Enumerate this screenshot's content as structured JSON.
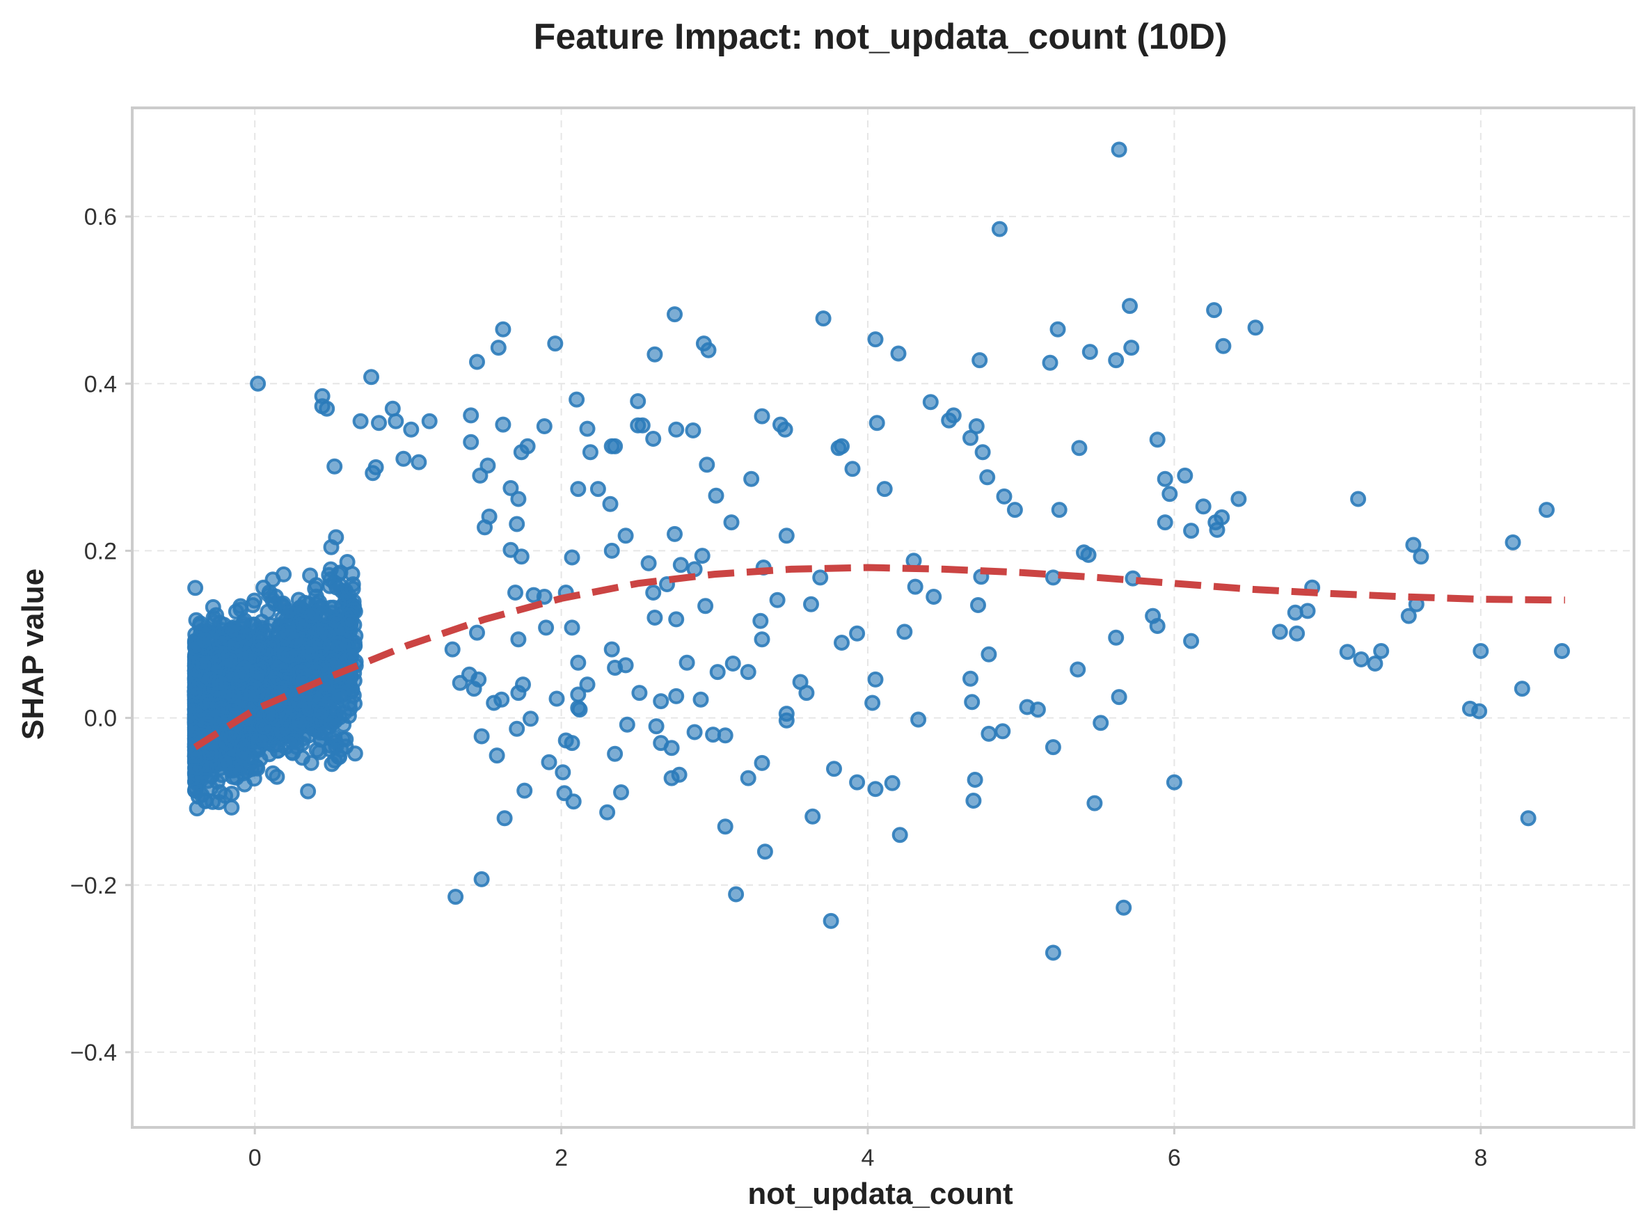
{
  "chart_data": {
    "type": "scatter",
    "title": "Feature Impact: not_updata_count (10D)",
    "xlabel": "not_updata_count",
    "ylabel": "SHAP value",
    "xlim": [
      -0.8,
      9.0
    ],
    "ylim": [
      -0.49,
      0.73
    ],
    "xticks": [
      0,
      2,
      4,
      6,
      8
    ],
    "xtick_labels": [
      "0",
      "2",
      "4",
      "6",
      "8"
    ],
    "yticks": [
      -0.4,
      -0.2,
      0.0,
      0.2,
      0.4,
      0.6
    ],
    "ytick_labels": [
      "−0.4",
      "−0.2",
      "0.0",
      "0.2",
      "0.4",
      "0.6"
    ],
    "grid": true,
    "colors": {
      "points": "#2b7bba",
      "trend": "#cb4443",
      "frame": "#cccccc"
    },
    "series": [
      {
        "type": "scatter",
        "points": [
          [
            5.64,
            0.68
          ],
          [
            4.86,
            0.585
          ],
          [
            2.74,
            0.483
          ],
          [
            3.71,
            0.478
          ],
          [
            5.71,
            0.493
          ],
          [
            6.26,
            0.488
          ],
          [
            1.62,
            0.465
          ],
          [
            5.24,
            0.465
          ],
          [
            6.53,
            0.467
          ],
          [
            4.05,
            0.453
          ],
          [
            1.96,
            0.448
          ],
          [
            2.93,
            0.448
          ],
          [
            1.59,
            0.443
          ],
          [
            2.96,
            0.44
          ],
          [
            5.45,
            0.438
          ],
          [
            5.72,
            0.443
          ],
          [
            6.32,
            0.445
          ],
          [
            4.2,
            0.436
          ],
          [
            2.61,
            0.435
          ],
          [
            1.45,
            0.426
          ],
          [
            4.73,
            0.428
          ],
          [
            5.19,
            0.425
          ],
          [
            5.62,
            0.428
          ],
          [
            0.76,
            0.408
          ],
          [
            0.02,
            0.4
          ],
          [
            0.44,
            0.385
          ],
          [
            0.44,
            0.373
          ],
          [
            2.1,
            0.381
          ],
          [
            2.5,
            0.379
          ],
          [
            4.41,
            0.378
          ],
          [
            1.41,
            0.362
          ],
          [
            3.31,
            0.361
          ],
          [
            4.56,
            0.362
          ],
          [
            4.53,
            0.356
          ],
          [
            0.69,
            0.355
          ],
          [
            0.81,
            0.353
          ],
          [
            0.92,
            0.355
          ],
          [
            1.14,
            0.355
          ],
          [
            1.02,
            0.345
          ],
          [
            1.62,
            0.351
          ],
          [
            1.89,
            0.349
          ],
          [
            2.17,
            0.346
          ],
          [
            2.5,
            0.35
          ],
          [
            2.53,
            0.35
          ],
          [
            2.75,
            0.345
          ],
          [
            2.86,
            0.344
          ],
          [
            3.43,
            0.351
          ],
          [
            3.46,
            0.345
          ],
          [
            4.06,
            0.353
          ],
          [
            4.71,
            0.349
          ],
          [
            5.89,
            0.333
          ],
          [
            2.6,
            0.334
          ],
          [
            4.67,
            0.335
          ],
          [
            1.41,
            0.33
          ],
          [
            2.35,
            0.325
          ],
          [
            3.81,
            0.323
          ],
          [
            3.83,
            0.325
          ],
          [
            5.38,
            0.323
          ],
          [
            1.74,
            0.318
          ],
          [
            1.78,
            0.325
          ],
          [
            2.19,
            0.318
          ],
          [
            2.33,
            0.325
          ],
          [
            4.75,
            0.318
          ],
          [
            0.97,
            0.31
          ],
          [
            1.07,
            0.306
          ],
          [
            1.47,
            0.29
          ],
          [
            1.52,
            0.302
          ],
          [
            2.95,
            0.303
          ],
          [
            3.9,
            0.298
          ],
          [
            5.94,
            0.286
          ],
          [
            6.07,
            0.29
          ],
          [
            4.78,
            0.288
          ],
          [
            3.24,
            0.286
          ],
          [
            0.52,
            0.301
          ],
          [
            0.79,
            0.3
          ],
          [
            0.77,
            0.293
          ],
          [
            1.67,
            0.275
          ],
          [
            1.72,
            0.262
          ],
          [
            2.11,
            0.274
          ],
          [
            2.24,
            0.274
          ],
          [
            3.01,
            0.266
          ],
          [
            4.11,
            0.274
          ],
          [
            4.89,
            0.265
          ],
          [
            5.97,
            0.268
          ],
          [
            7.2,
            0.262
          ],
          [
            6.42,
            0.262
          ],
          [
            2.32,
            0.256
          ],
          [
            5.25,
            0.249
          ],
          [
            4.96,
            0.249
          ],
          [
            6.19,
            0.253
          ],
          [
            8.43,
            0.249
          ],
          [
            1.53,
            0.241
          ],
          [
            1.71,
            0.232
          ],
          [
            3.11,
            0.234
          ],
          [
            5.94,
            0.234
          ],
          [
            6.27,
            0.234
          ],
          [
            6.31,
            0.24
          ],
          [
            6.11,
            0.224
          ],
          [
            6.28,
            0.225
          ],
          [
            1.5,
            0.228
          ],
          [
            2.74,
            0.22
          ],
          [
            3.47,
            0.218
          ],
          [
            2.42,
            0.218
          ],
          [
            5.41,
            0.198
          ],
          [
            5.44,
            0.195
          ],
          [
            7.56,
            0.207
          ],
          [
            8.21,
            0.21
          ],
          [
            7.61,
            0.193
          ],
          [
            1.67,
            0.201
          ],
          [
            1.74,
            0.193
          ],
          [
            2.07,
            0.192
          ],
          [
            2.33,
            0.2
          ],
          [
            2.92,
            0.194
          ],
          [
            4.3,
            0.188
          ],
          [
            2.57,
            0.185
          ],
          [
            2.78,
            0.183
          ],
          [
            3.32,
            0.18
          ],
          [
            2.87,
            0.178
          ],
          [
            3.69,
            0.168
          ],
          [
            4.74,
            0.169
          ],
          [
            5.21,
            0.168
          ],
          [
            5.73,
            0.167
          ],
          [
            2.03,
            0.15
          ],
          [
            2.6,
            0.15
          ],
          [
            2.69,
            0.16
          ],
          [
            4.31,
            0.157
          ],
          [
            4.43,
            0.145
          ],
          [
            3.41,
            0.141
          ],
          [
            3.63,
            0.136
          ],
          [
            4.72,
            0.135
          ],
          [
            6.9,
            0.156
          ],
          [
            7.58,
            0.136
          ],
          [
            2.94,
            0.134
          ],
          [
            2.61,
            0.12
          ],
          [
            2.75,
            0.118
          ],
          [
            1.7,
            0.15
          ],
          [
            1.82,
            0.147
          ],
          [
            1.89,
            0.145
          ],
          [
            3.3,
            0.116
          ],
          [
            5.86,
            0.122
          ],
          [
            6.87,
            0.128
          ],
          [
            7.53,
            0.122
          ],
          [
            6.79,
            0.126
          ],
          [
            5.89,
            0.11
          ],
          [
            1.9,
            0.108
          ],
          [
            2.07,
            0.108
          ],
          [
            4.24,
            0.103
          ],
          [
            3.93,
            0.101
          ],
          [
            3.83,
            0.09
          ],
          [
            5.62,
            0.096
          ],
          [
            6.11,
            0.092
          ],
          [
            6.69,
            0.103
          ],
          [
            6.8,
            0.101
          ],
          [
            3.31,
            0.094
          ],
          [
            1.72,
            0.094
          ],
          [
            1.45,
            0.102
          ],
          [
            2.33,
            0.082
          ],
          [
            1.29,
            0.082
          ],
          [
            7.13,
            0.079
          ],
          [
            7.22,
            0.07
          ],
          [
            7.31,
            0.065
          ],
          [
            7.35,
            0.08
          ],
          [
            8.0,
            0.08
          ],
          [
            8.53,
            0.08
          ],
          [
            4.79,
            0.076
          ],
          [
            2.82,
            0.066
          ],
          [
            2.11,
            0.066
          ],
          [
            2.42,
            0.063
          ],
          [
            2.35,
            0.06
          ],
          [
            5.37,
            0.058
          ],
          [
            3.22,
            0.055
          ],
          [
            3.02,
            0.055
          ],
          [
            3.12,
            0.065
          ],
          [
            4.05,
            0.046
          ],
          [
            4.67,
            0.047
          ],
          [
            3.56,
            0.043
          ],
          [
            3.6,
            0.03
          ],
          [
            2.17,
            0.04
          ],
          [
            2.11,
            0.028
          ],
          [
            2.11,
            0.012
          ],
          [
            2.12,
            0.01
          ],
          [
            2.51,
            0.03
          ],
          [
            2.65,
            0.02
          ],
          [
            2.91,
            0.022
          ],
          [
            2.75,
            0.026
          ],
          [
            1.97,
            0.023
          ],
          [
            1.61,
            0.022
          ],
          [
            1.56,
            0.018
          ],
          [
            1.4,
            0.052
          ],
          [
            1.46,
            0.046
          ],
          [
            1.75,
            0.04
          ],
          [
            1.72,
            0.03
          ],
          [
            1.43,
            0.035
          ],
          [
            1.34,
            0.042
          ],
          [
            4.03,
            0.018
          ],
          [
            4.68,
            0.019
          ],
          [
            5.64,
            0.025
          ],
          [
            5.04,
            0.013
          ],
          [
            5.11,
            0.01
          ],
          [
            7.93,
            0.011
          ],
          [
            7.99,
            0.008
          ],
          [
            8.27,
            0.035
          ],
          [
            3.47,
            0.005
          ],
          [
            3.47,
            -0.003
          ],
          [
            4.33,
            -0.002
          ],
          [
            5.52,
            -0.006
          ],
          [
            2.62,
            -0.01
          ],
          [
            2.43,
            -0.008
          ],
          [
            2.87,
            -0.017
          ],
          [
            2.99,
            -0.02
          ],
          [
            3.07,
            -0.021
          ],
          [
            4.79,
            -0.019
          ],
          [
            4.88,
            -0.016
          ],
          [
            1.8,
            -0.001
          ],
          [
            1.71,
            -0.013
          ],
          [
            2.03,
            -0.027
          ],
          [
            2.07,
            -0.03
          ],
          [
            2.65,
            -0.03
          ],
          [
            2.72,
            -0.036
          ],
          [
            2.35,
            -0.043
          ],
          [
            1.48,
            -0.022
          ],
          [
            1.58,
            -0.045
          ],
          [
            5.21,
            -0.035
          ],
          [
            3.31,
            -0.054
          ],
          [
            1.92,
            -0.053
          ],
          [
            2.01,
            -0.065
          ],
          [
            2.77,
            -0.068
          ],
          [
            2.72,
            -0.072
          ],
          [
            3.22,
            -0.072
          ],
          [
            3.78,
            -0.061
          ],
          [
            3.93,
            -0.077
          ],
          [
            4.05,
            -0.085
          ],
          [
            4.16,
            -0.078
          ],
          [
            4.7,
            -0.074
          ],
          [
            6.0,
            -0.077
          ],
          [
            1.76,
            -0.087
          ],
          [
            2.02,
            -0.09
          ],
          [
            2.08,
            -0.1
          ],
          [
            2.39,
            -0.089
          ],
          [
            4.69,
            -0.099
          ],
          [
            5.48,
            -0.102
          ],
          [
            2.3,
            -0.113
          ],
          [
            1.63,
            -0.12
          ],
          [
            3.64,
            -0.118
          ],
          [
            8.31,
            -0.12
          ],
          [
            3.07,
            -0.13
          ],
          [
            4.21,
            -0.14
          ],
          [
            3.33,
            -0.16
          ],
          [
            1.48,
            -0.193
          ],
          [
            1.31,
            -0.214
          ],
          [
            3.14,
            -0.211
          ],
          [
            5.67,
            -0.227
          ],
          [
            3.76,
            -0.243
          ],
          [
            5.21,
            -0.281
          ],
          [
            0.9,
            0.37
          ],
          [
            0.47,
            0.37
          ]
        ]
      },
      {
        "type": "trend",
        "style": "dashed",
        "points": [
          [
            -0.39,
            -0.035
          ],
          [
            0.0,
            0.01
          ],
          [
            0.5,
            0.05
          ],
          [
            1.0,
            0.087
          ],
          [
            1.5,
            0.118
          ],
          [
            2.0,
            0.143
          ],
          [
            2.5,
            0.161
          ],
          [
            3.0,
            0.172
          ],
          [
            3.5,
            0.178
          ],
          [
            4.0,
            0.18
          ],
          [
            4.5,
            0.178
          ],
          [
            5.0,
            0.174
          ],
          [
            5.5,
            0.168
          ],
          [
            6.0,
            0.161
          ],
          [
            6.5,
            0.154
          ],
          [
            7.0,
            0.149
          ],
          [
            7.5,
            0.145
          ],
          [
            8.0,
            0.142
          ],
          [
            8.55,
            0.141
          ]
        ]
      }
    ]
  }
}
